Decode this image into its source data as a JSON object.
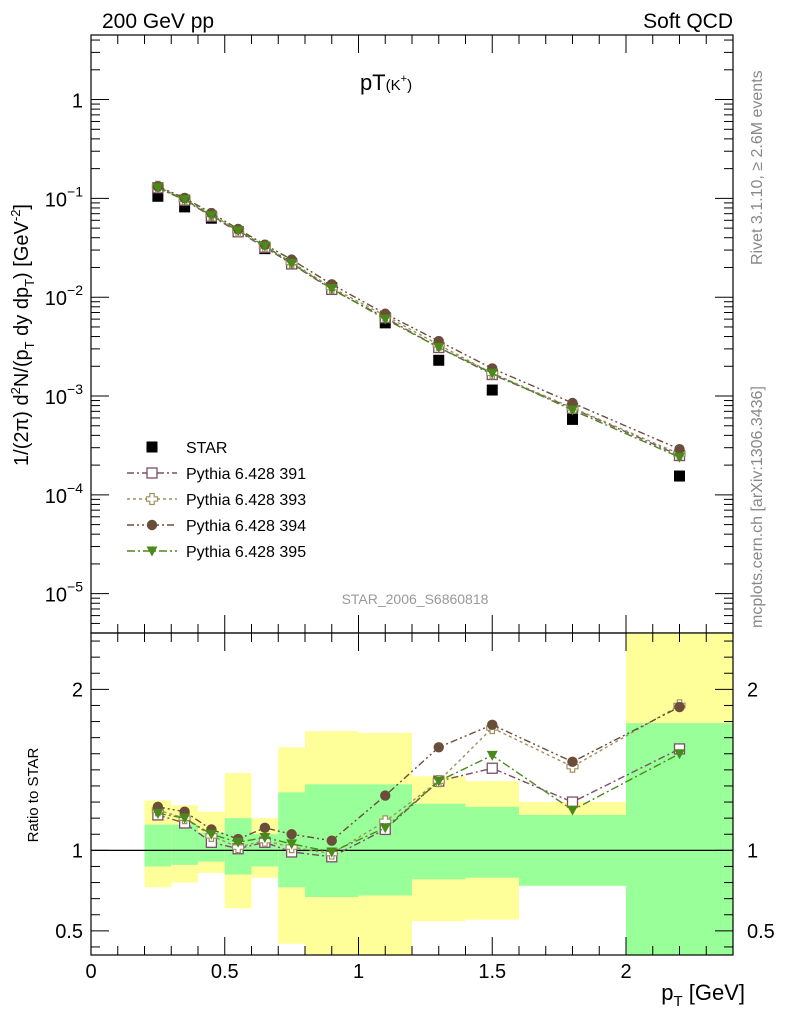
{
  "header": {
    "left": "200 GeV pp",
    "right": "Soft QCD"
  },
  "side_labels": {
    "rivet": "Rivet 3.1.10, ≥ 2.6M events",
    "mcplots": "mcplots.cern.ch [arXiv:1306.3436]"
  },
  "chart_data": [
    {
      "type": "scatter",
      "title_base": "pT",
      "title_particle": "(K",
      "title_charge": "+",
      "title_close": ")",
      "watermark": "STAR_2006_S6860818",
      "y_scale": "log",
      "xlim": [
        0,
        2.4
      ],
      "ylim": [
        4e-06,
        4.5
      ],
      "ylabel_parts": [
        "1/(2",
        "π",
        ") d",
        "2",
        "N/(p",
        "T",
        " dy dp",
        "T",
        ") [GeV",
        "-2",
        "]"
      ],
      "y_ticks": [
        {
          "value": 1e-05,
          "base": "10",
          "exp": "−5"
        },
        {
          "value": 0.0001,
          "base": "10",
          "exp": "−4"
        },
        {
          "value": 0.001,
          "base": "10",
          "exp": "−3"
        },
        {
          "value": 0.01,
          "base": "10",
          "exp": "−2"
        },
        {
          "value": 0.1,
          "base": "10",
          "exp": "−1"
        },
        {
          "value": 1,
          "base": "1",
          "exp": ""
        }
      ],
      "legend_position": "bottom-left",
      "x": [
        0.25,
        0.35,
        0.45,
        0.55,
        0.65,
        0.75,
        0.9,
        1.1,
        1.3,
        1.5,
        1.8,
        2.2
      ],
      "series": [
        {
          "name": "STAR",
          "marker": "filled-square",
          "color": "#000000",
          "values": [
            0.105,
            0.082,
            0.063,
            0.046,
            0.031,
            0.022,
            0.0125,
            0.0055,
            0.0023,
            0.00115,
            0.00058,
            0.000155
          ]
        },
        {
          "name": "Pythia 6.428 391",
          "marker": "open-square",
          "color": "#7a4f6a",
          "values": [
            0.128,
            0.096,
            0.066,
            0.046,
            0.032,
            0.0217,
            0.012,
            0.0062,
            0.0031,
            0.00165,
            0.00075,
            0.00025
          ]
        },
        {
          "name": "Pythia 6.428 393",
          "marker": "open-cross",
          "color": "#a09060",
          "values": [
            0.131,
            0.098,
            0.069,
            0.047,
            0.033,
            0.0225,
            0.0125,
            0.0065,
            0.0033,
            0.0017,
            0.00076,
            0.00026
          ]
        },
        {
          "name": "Pythia 6.428 394",
          "marker": "filled-circle",
          "color": "#6b4e3a",
          "values": [
            0.132,
            0.101,
            0.071,
            0.049,
            0.034,
            0.024,
            0.0135,
            0.0068,
            0.0036,
            0.0019,
            0.00085,
            0.00029
          ]
        },
        {
          "name": "Pythia 6.428 395",
          "marker": "filled-triangle-down",
          "color": "#4a8a1a",
          "values": [
            0.128,
            0.097,
            0.067,
            0.047,
            0.033,
            0.022,
            0.0122,
            0.006,
            0.0031,
            0.0017,
            0.00072,
            0.00024
          ]
        }
      ]
    },
    {
      "type": "scatter",
      "ylabel": "Ratio to STAR",
      "xlabel": "p",
      "xlabel_sub": "T",
      "xlabel_unit": " [GeV]",
      "xlim": [
        0,
        2.4
      ],
      "ylim": [
        0.35,
        2.35
      ],
      "x_ticks": [
        {
          "value": 0,
          "label": "0"
        },
        {
          "value": 0.5,
          "label": "0.5"
        },
        {
          "value": 1,
          "label": "1"
        },
        {
          "value": 1.5,
          "label": "1.5"
        },
        {
          "value": 2,
          "label": "2"
        }
      ],
      "y_ticks": [
        {
          "value": 0.5,
          "label": "0.5"
        },
        {
          "value": 1,
          "label": "1"
        },
        {
          "value": 2,
          "label": "2"
        }
      ],
      "reference_line": 1,
      "band_colors": {
        "outer": "#ffff99",
        "inner": "#99ff99"
      },
      "bands": [
        {
          "x0": 0.2,
          "x1": 0.3,
          "outer": [
            0.77,
            1.31
          ],
          "inner": [
            0.9,
            1.16
          ]
        },
        {
          "x0": 0.3,
          "x1": 0.4,
          "outer": [
            0.8,
            1.28
          ],
          "inner": [
            0.91,
            1.16
          ]
        },
        {
          "x0": 0.4,
          "x1": 0.5,
          "outer": [
            0.86,
            1.24
          ],
          "inner": [
            0.93,
            1.11
          ]
        },
        {
          "x0": 0.5,
          "x1": 0.6,
          "outer": [
            0.64,
            1.48
          ],
          "inner": [
            0.85,
            1.2
          ]
        },
        {
          "x0": 0.6,
          "x1": 0.7,
          "outer": [
            0.83,
            1.2
          ],
          "inner": [
            0.9,
            1.1
          ]
        },
        {
          "x0": 0.7,
          "x1": 0.8,
          "outer": [
            0.42,
            1.64
          ],
          "inner": [
            0.77,
            1.36
          ]
        },
        {
          "x0": 0.8,
          "x1": 1.0,
          "outer": [
            0.35,
            1.74
          ],
          "inner": [
            0.71,
            1.41
          ]
        },
        {
          "x0": 1.0,
          "x1": 1.2,
          "outer": [
            0.35,
            1.73
          ],
          "inner": [
            0.72,
            1.41
          ]
        },
        {
          "x0": 1.2,
          "x1": 1.4,
          "outer": [
            0.56,
            1.46
          ],
          "inner": [
            0.82,
            1.29
          ]
        },
        {
          "x0": 1.4,
          "x1": 1.6,
          "outer": [
            0.57,
            1.43
          ],
          "inner": [
            0.83,
            1.27
          ]
        },
        {
          "x0": 1.6,
          "x1": 2.0,
          "outer": [
            0.78,
            1.3
          ],
          "inner": [
            0.78,
            1.22
          ]
        },
        {
          "x0": 2.0,
          "x1": 2.4,
          "outer": [
            0.35,
            2.35
          ],
          "inner": [
            0.35,
            1.79
          ]
        }
      ],
      "x": [
        0.25,
        0.35,
        0.45,
        0.55,
        0.65,
        0.75,
        0.9,
        1.1,
        1.3,
        1.5,
        1.8,
        2.2
      ],
      "series": [
        {
          "name": "Pythia 6.428 391",
          "marker": "open-square",
          "color": "#7a4f6a",
          "values": [
            1.22,
            1.17,
            1.05,
            1.01,
            1.05,
            0.99,
            0.96,
            1.13,
            1.43,
            1.51,
            1.3,
            1.63
          ]
        },
        {
          "name": "Pythia 6.428 393",
          "marker": "open-cross",
          "color": "#a09060",
          "values": [
            1.25,
            1.2,
            1.09,
            1.02,
            1.06,
            1.02,
            0.98,
            1.18,
            1.43,
            1.76,
            1.52,
            1.9
          ]
        },
        {
          "name": "Pythia 6.428 394",
          "marker": "filled-circle",
          "color": "#6b4e3a",
          "values": [
            1.27,
            1.24,
            1.13,
            1.07,
            1.14,
            1.1,
            1.06,
            1.34,
            1.64,
            1.78,
            1.55,
            1.89
          ]
        },
        {
          "name": "Pythia 6.428 395",
          "marker": "filled-triangle-down",
          "color": "#4a8a1a",
          "values": [
            1.23,
            1.2,
            1.1,
            1.05,
            1.08,
            1.04,
            0.99,
            1.14,
            1.43,
            1.59,
            1.25,
            1.6
          ]
        }
      ]
    }
  ]
}
